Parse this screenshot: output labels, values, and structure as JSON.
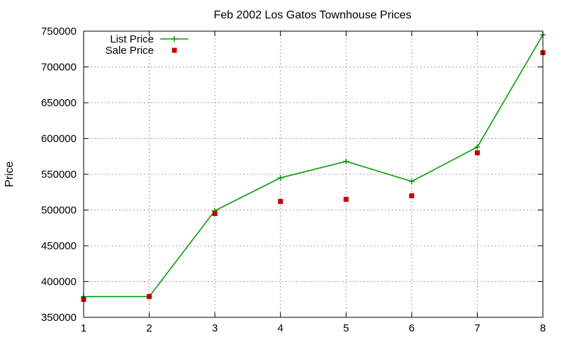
{
  "chart_data": {
    "type": "line",
    "title": "Feb 2002 Los Gatos Townhouse Prices",
    "xlabel": "",
    "ylabel": "Price",
    "x": [
      1,
      2,
      3,
      4,
      5,
      6,
      7,
      8
    ],
    "xlim": [
      1,
      8
    ],
    "ylim": [
      350000,
      750000
    ],
    "xticks": [
      "1",
      "2",
      "3",
      "4",
      "5",
      "6",
      "7",
      "8"
    ],
    "yticks": [
      "350000",
      "400000",
      "450000",
      "500000",
      "550000",
      "600000",
      "650000",
      "700000",
      "750000"
    ],
    "grid": true,
    "legend_position": "top-left",
    "series": [
      {
        "name": "List Price",
        "style": "linespoints",
        "marker": "plus",
        "color": "#0b9b0b",
        "values": [
          379000,
          379000,
          499000,
          545000,
          568000,
          540000,
          588000,
          745000
        ]
      },
      {
        "name": "Sale Price",
        "style": "points",
        "marker": "square",
        "color": "#c80000",
        "values": [
          375000,
          379000,
          495000,
          512000,
          515000,
          520000,
          580000,
          720000
        ]
      }
    ]
  }
}
